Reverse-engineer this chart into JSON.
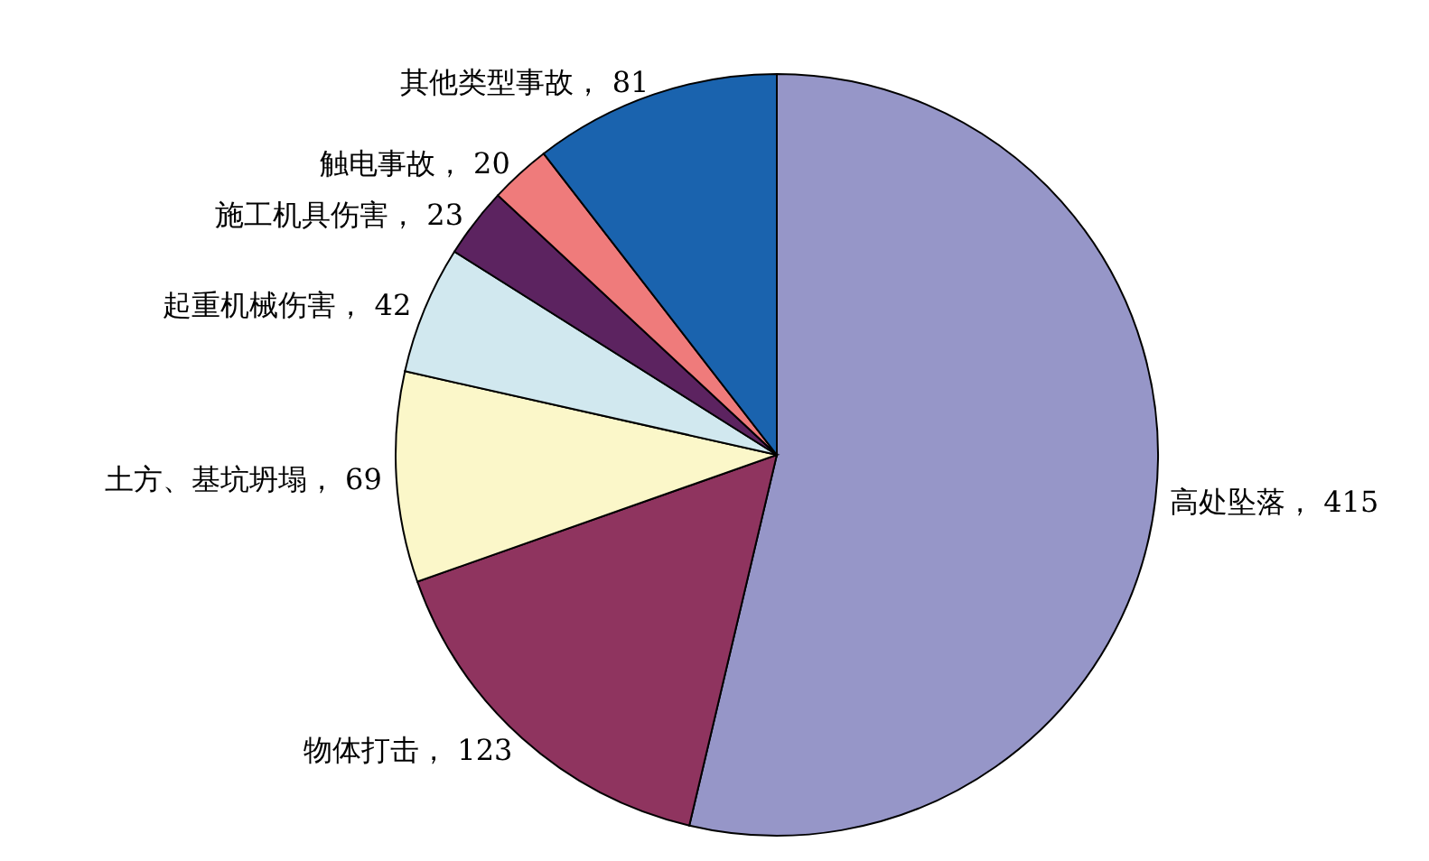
{
  "chart_data": {
    "type": "pie",
    "categories": [
      "高处坠落",
      "物体打击",
      "土方、基坑坍塌",
      "起重机械伤害",
      "施工机具伤害",
      "触电事故",
      "其他类型事故"
    ],
    "values": [
      415,
      123,
      69,
      42,
      23,
      20,
      81
    ],
    "colors": [
      "#9696c8",
      "#8f345f",
      "#fbf7c9",
      "#d1e8ef",
      "#5c2360",
      "#ef7b7b",
      "#1a63ae"
    ],
    "value_labels": [
      "， 415",
      "， 123",
      "， 69",
      "， 42",
      "， 23",
      "， 20",
      "， 81"
    ],
    "legend": false
  }
}
